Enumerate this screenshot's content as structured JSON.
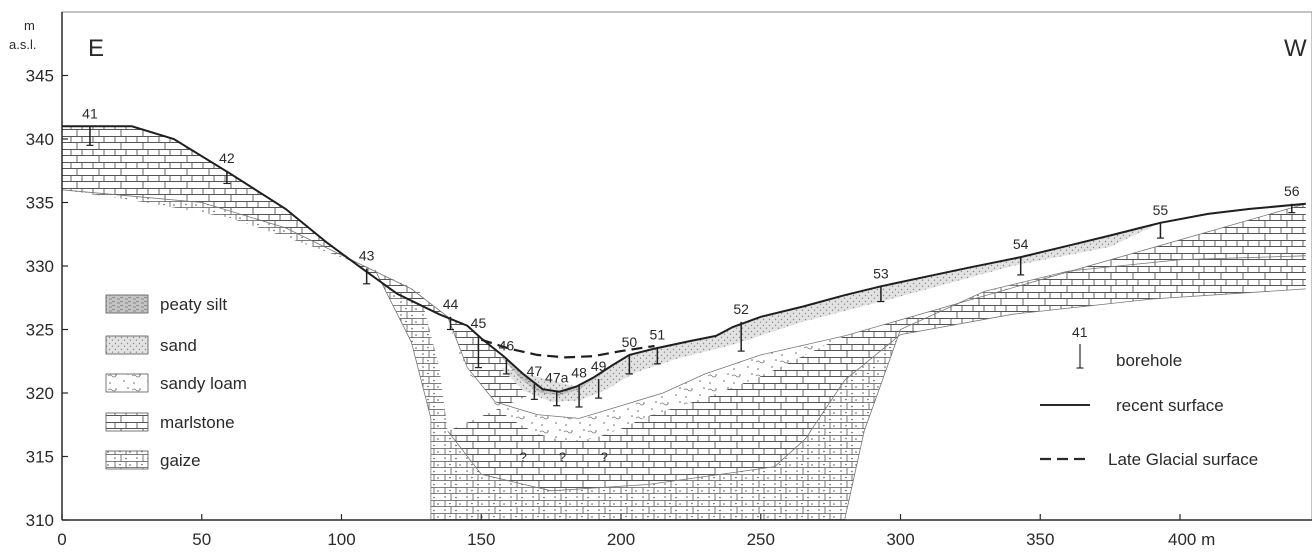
{
  "header": {
    "y_unit_line1": "m",
    "y_unit_line2": "a.s.l.",
    "west_east_left": "E",
    "west_east_right": "W"
  },
  "chart_data": {
    "type": "geological-cross-section",
    "x_axis": {
      "unit": "m",
      "range": [
        0,
        445
      ],
      "ticks": [
        0,
        50,
        100,
        150,
        200,
        250,
        300,
        350,
        400
      ],
      "tick_labels": [
        "0",
        "50",
        "100",
        "150",
        "200",
        "250",
        "300",
        "350",
        "400 m"
      ]
    },
    "y_axis": {
      "unit": "m a.s.l.",
      "range": [
        310,
        347
      ],
      "ticks": [
        310,
        315,
        320,
        325,
        330,
        335,
        340,
        345
      ],
      "tick_labels": [
        "310",
        "315",
        "320",
        "325",
        "330",
        "335",
        "340",
        "345"
      ]
    },
    "recent_surface": [
      [
        0,
        341
      ],
      [
        25,
        341
      ],
      [
        40,
        340
      ],
      [
        60,
        337.3
      ],
      [
        80,
        334.5
      ],
      [
        95,
        331.8
      ],
      [
        108,
        329.7
      ],
      [
        120,
        327.8
      ],
      [
        135,
        326.2
      ],
      [
        145,
        325.3
      ],
      [
        150,
        324.3
      ],
      [
        158,
        322.9
      ],
      [
        165,
        321.5
      ],
      [
        172,
        320.3
      ],
      [
        178,
        320.1
      ],
      [
        184,
        320.5
      ],
      [
        190,
        321.2
      ],
      [
        197,
        322.2
      ],
      [
        203,
        323.0
      ],
      [
        212,
        323.5
      ],
      [
        225,
        324.1
      ],
      [
        234,
        324.5
      ],
      [
        240,
        325.2
      ],
      [
        250,
        326.0
      ],
      [
        265,
        326.8
      ],
      [
        280,
        327.7
      ],
      [
        293,
        328.4
      ],
      [
        310,
        329.2
      ],
      [
        325,
        329.9
      ],
      [
        343,
        330.7
      ],
      [
        360,
        331.6
      ],
      [
        375,
        332.4
      ],
      [
        393,
        333.4
      ],
      [
        410,
        334.1
      ],
      [
        425,
        334.5
      ],
      [
        445,
        334.9
      ]
    ],
    "late_glacial_surface": [
      [
        150,
        324.2
      ],
      [
        160,
        323.5
      ],
      [
        170,
        323.0
      ],
      [
        180,
        322.8
      ],
      [
        190,
        322.9
      ],
      [
        200,
        323.3
      ],
      [
        212,
        323.7
      ]
    ],
    "boreholes": [
      {
        "id": "41",
        "x": 10,
        "top": 341,
        "bottom": 339.5
      },
      {
        "id": "42",
        "x": 59,
        "top": 337.5,
        "bottom": 336.5
      },
      {
        "id": "43",
        "x": 109,
        "top": 329.8,
        "bottom": 328.6
      },
      {
        "id": "44",
        "x": 139,
        "top": 326,
        "bottom": 325
      },
      {
        "id": "45",
        "x": 149,
        "top": 324.5,
        "bottom": 322
      },
      {
        "id": "46",
        "x": 159,
        "top": 322.7,
        "bottom": 321.5
      },
      {
        "id": "47",
        "x": 169,
        "top": 320.7,
        "bottom": 319.5
      },
      {
        "id": "47a",
        "x": 177,
        "top": 320.2,
        "bottom": 319
      },
      {
        "id": "48",
        "x": 185,
        "top": 320.6,
        "bottom": 318.9
      },
      {
        "id": "49",
        "x": 192,
        "top": 321.1,
        "bottom": 319.6
      },
      {
        "id": "50",
        "x": 203,
        "top": 323,
        "bottom": 321.5
      },
      {
        "id": "51",
        "x": 213,
        "top": 323.6,
        "bottom": 322.3
      },
      {
        "id": "52",
        "x": 243,
        "top": 325.6,
        "bottom": 323.3
      },
      {
        "id": "53",
        "x": 293,
        "top": 328.4,
        "bottom": 327.2
      },
      {
        "id": "54",
        "x": 343,
        "top": 330.7,
        "bottom": 329.3
      },
      {
        "id": "55",
        "x": 393,
        "top": 333.4,
        "bottom": 332.2
      },
      {
        "id": "56",
        "x": 440,
        "top": 334.9,
        "bottom": 334.2
      }
    ],
    "unknown_marks": [
      "?",
      "?",
      "?"
    ]
  },
  "legend_lithology": [
    {
      "key": "peaty_silt",
      "label": "peaty silt"
    },
    {
      "key": "sand",
      "label": "sand"
    },
    {
      "key": "sandy_loam",
      "label": "sandy loam"
    },
    {
      "key": "marlstone",
      "label": "marlstone"
    },
    {
      "key": "gaize",
      "label": "gaize"
    }
  ],
  "legend_symbols": {
    "borehole_example_id": "41",
    "borehole": "borehole",
    "recent_surface": "recent surface",
    "late_glacial_surface": "Late Glacial surface"
  },
  "colors": {
    "ink": "#2a2a2a",
    "background": "#ffffff"
  }
}
